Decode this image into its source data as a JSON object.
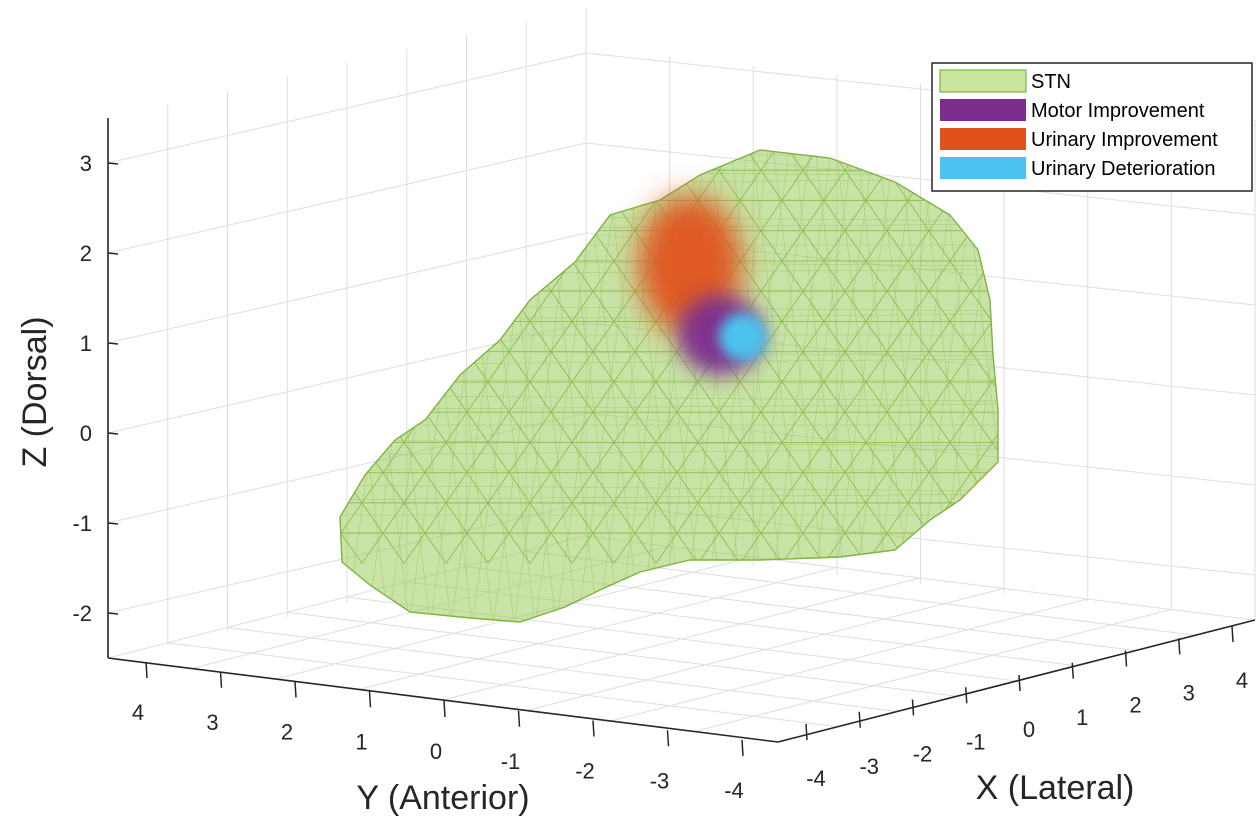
{
  "chart_data": {
    "type": "3d-surface-with-blobs",
    "xlabel": "X (Lateral)",
    "ylabel": "Y (Anterior)",
    "zlabel": "Z (Dorsal)",
    "x_ticks": [
      "-4",
      "-3",
      "-2",
      "-1",
      "0",
      "1",
      "2",
      "3",
      "4"
    ],
    "y_ticks": [
      "4",
      "3",
      "2",
      "1",
      "0",
      "-1",
      "-2",
      "-3",
      "-4"
    ],
    "z_ticks": [
      "3",
      "2",
      "1",
      "0",
      "-1",
      "-2"
    ],
    "grid": true,
    "legend_position": "top-right",
    "legend": [
      {
        "label": "STN",
        "color": "#c8e6a0",
        "border": "#7fb241"
      },
      {
        "label": "Motor Improvement",
        "color": "#7b2d8e"
      },
      {
        "label": "Urinary Improvement",
        "color": "#e0521a"
      },
      {
        "label": "Urinary Deterioration",
        "color": "#4cc3ee"
      }
    ],
    "series": [
      {
        "name": "STN",
        "kind": "mesh",
        "color": "#9ccb5c"
      },
      {
        "name": "Motor Improvement",
        "kind": "blob",
        "color": "#7b2d8e"
      },
      {
        "name": "Urinary Improvement",
        "kind": "blob",
        "color": "#e0521a"
      },
      {
        "name": "Urinary Deterioration",
        "kind": "blob",
        "color": "#4cc3ee"
      }
    ]
  }
}
